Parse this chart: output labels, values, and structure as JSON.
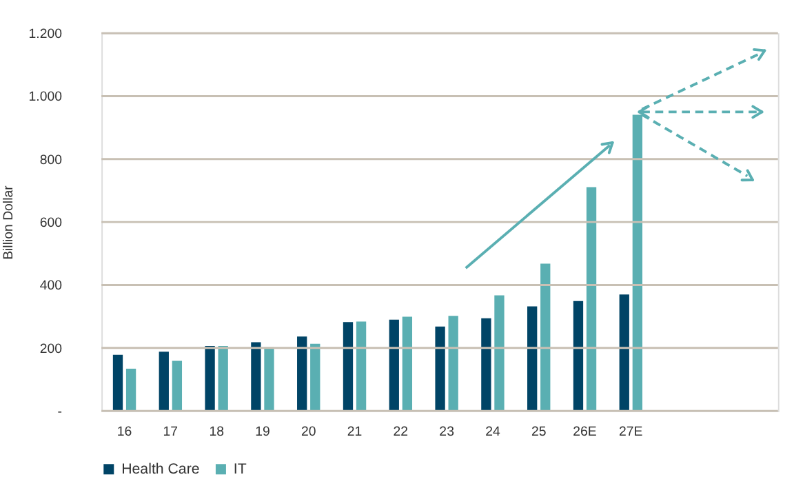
{
  "chart_data": {
    "type": "bar",
    "ylabel": "Billion Dollar",
    "categories": [
      "16",
      "17",
      "18",
      "19",
      "20",
      "21",
      "22",
      "23",
      "24",
      "25",
      "26E",
      "27E"
    ],
    "series": [
      {
        "name": "Health Care",
        "color": "#004466",
        "values": [
          178,
          188,
          206,
          218,
          236,
          282,
          290,
          268,
          294,
          332,
          349,
          370
        ]
      },
      {
        "name": "IT",
        "color": "#5aafb2",
        "values": [
          134,
          159,
          206,
          202,
          213,
          284,
          299,
          302,
          367,
          468,
          711,
          941
        ]
      }
    ],
    "ylim": [
      0,
      1200
    ],
    "yticks": [
      {
        "value": 0,
        "label": "-"
      },
      200,
      400,
      600,
      800,
      {
        "value": 1000,
        "label": "1.000"
      },
      {
        "value": 1200,
        "label": "1.200"
      }
    ],
    "grid": "y",
    "legend": "bottom"
  }
}
